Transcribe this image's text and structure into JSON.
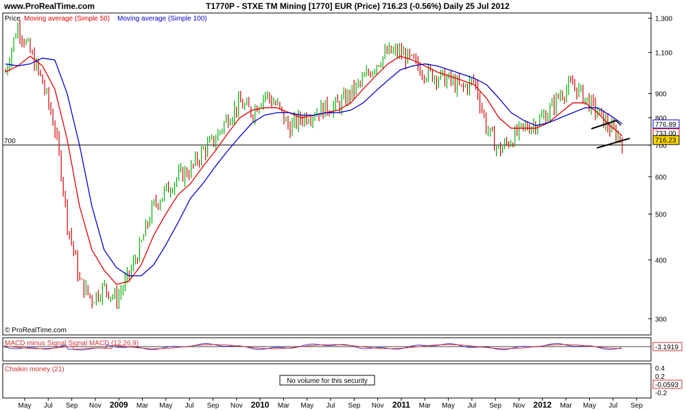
{
  "header": {
    "site": "www.ProRealTime.com",
    "title": "T1770P - STXE TM Mining [1770] EUR (Price)   716.23 (-0.56%)   Daily  25 Jul 2012"
  },
  "colors": {
    "price_up": "#00aa00",
    "price_down": "#cc0000",
    "ma50": "#dd0000",
    "ma100": "#0000cc",
    "macd": "#3333cc",
    "signal": "#dd3333",
    "chaikin": "#cc3333",
    "current_price_tag": "#ffd800"
  },
  "price_panel": {
    "legend": {
      "price": "Price",
      "ma50": "Moving average (Simple 50)",
      "ma100": "Moving average (Simple 100)"
    },
    "level_line_label": "700",
    "copyright": "© ProRealTime.com",
    "tags": {
      "ma100": "776.89",
      "ma50": "733.00",
      "price": "716.23"
    }
  },
  "macd_panel": {
    "legend": "MACD minus Signal Signal MACD (12,26,9)",
    "value": "-3.1919"
  },
  "chaikin_panel": {
    "legend": "Chaikin money (21)",
    "notice": "No volume for this security",
    "value": "-0.0593",
    "y_ticks": [
      "0.4",
      "0.2",
      "-0.2"
    ]
  },
  "chart_data": {
    "type": "line",
    "title": "T1770P - STXE TM Mining [1770] EUR (Price)",
    "scale": "log",
    "ylim": [
      280,
      1320
    ],
    "y_ticks": [
      300,
      400,
      500,
      600,
      700,
      800,
      900,
      1100,
      1300
    ],
    "y_tick_labels": [
      "300",
      "400",
      "500",
      "600",
      "700",
      "800",
      "900",
      "1,100",
      "1,300"
    ],
    "x_ticks": [
      "May",
      "Jul",
      "Sep",
      "Nov",
      "2009",
      "Mar",
      "May",
      "Jul",
      "Sep",
      "Nov",
      "2010",
      "Mar",
      "May",
      "Jul",
      "Sep",
      "Nov",
      "2011",
      "Mar",
      "May",
      "Jul",
      "Sep",
      "Nov",
      "2012",
      "Mar",
      "May",
      "Jul",
      "Sep"
    ],
    "x_year_ticks": [
      "2009",
      "2010",
      "2011",
      "2012"
    ],
    "x": [
      "May 08",
      "Jun 08",
      "Jul 08",
      "Aug 08",
      "Sep 08",
      "Oct 08",
      "Nov 08",
      "Dec 08",
      "Jan 09",
      "Feb 09",
      "Mar 09",
      "Apr 09",
      "May 09",
      "Jun 09",
      "Jul 09",
      "Aug 09",
      "Sep 09",
      "Oct 09",
      "Nov 09",
      "Dec 09",
      "Jan 10",
      "Feb 10",
      "Mar 10",
      "Apr 10",
      "May 10",
      "Jun 10",
      "Jul 10",
      "Aug 10",
      "Sep 10",
      "Oct 10",
      "Nov 10",
      "Dec 10",
      "Jan 11",
      "Feb 11",
      "Mar 11",
      "Apr 11",
      "May 11",
      "Jun 11",
      "Jul 11",
      "Aug 11",
      "Sep 11",
      "Oct 11",
      "Nov 11",
      "Dec 11",
      "Jan 12",
      "Feb 12",
      "Mar 12",
      "Apr 12",
      "May 12",
      "Jun 12",
      "Jul 12"
    ],
    "series": [
      {
        "name": "Price",
        "values": [
          1000,
          1250,
          1100,
          950,
          760,
          480,
          360,
          330,
          350,
          330,
          370,
          430,
          520,
          560,
          600,
          620,
          680,
          720,
          800,
          860,
          820,
          900,
          850,
          760,
          800,
          820,
          840,
          850,
          900,
          960,
          1040,
          1100,
          1100,
          1050,
          1000,
          980,
          960,
          920,
          960,
          760,
          680,
          720,
          760,
          780,
          820,
          900,
          940,
          880,
          820,
          760,
          716
        ]
      },
      {
        "name": "Moving average (Simple 50)",
        "values": [
          1000,
          1030,
          1080,
          1030,
          920,
          720,
          520,
          420,
          380,
          355,
          360,
          390,
          450,
          500,
          550,
          580,
          630,
          680,
          740,
          800,
          830,
          840,
          840,
          820,
          800,
          810,
          820,
          830,
          860,
          920,
          980,
          1040,
          1080,
          1060,
          1030,
          1000,
          980,
          960,
          940,
          880,
          800,
          760,
          760,
          760,
          780,
          820,
          860,
          860,
          820,
          770,
          733
        ]
      },
      {
        "name": "Moving average (Simple 100)",
        "values": [
          1040,
          1030,
          1040,
          1070,
          1060,
          900,
          700,
          520,
          420,
          385,
          370,
          370,
          390,
          430,
          480,
          540,
          580,
          630,
          680,
          730,
          780,
          810,
          820,
          820,
          810,
          810,
          820,
          820,
          830,
          860,
          910,
          960,
          1010,
          1030,
          1040,
          1030,
          1010,
          990,
          970,
          940,
          880,
          820,
          790,
          770,
          780,
          800,
          820,
          840,
          840,
          810,
          777
        ]
      }
    ],
    "horizontal_line": 700
  }
}
